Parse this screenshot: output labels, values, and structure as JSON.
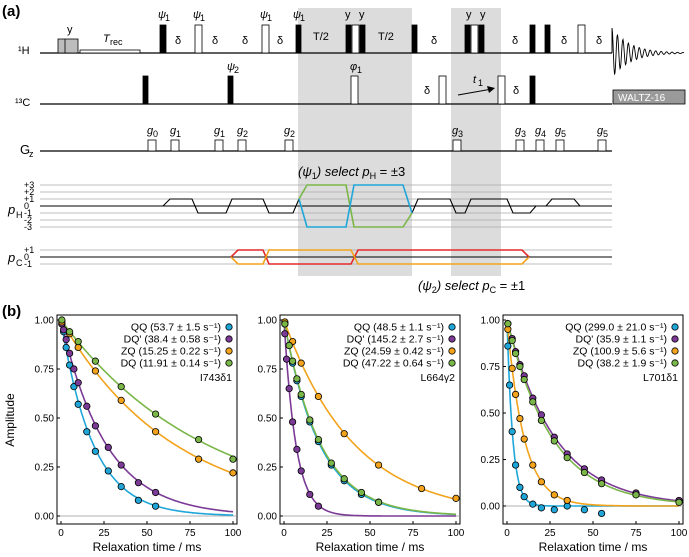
{
  "panel_a": {
    "label": "(a)",
    "channels": {
      "h": "¹H",
      "c": "¹³C",
      "g": "G",
      "g_sub": "z",
      "ph": "p",
      "ph_sub": "H",
      "pc": "p",
      "pc_sub": "C"
    },
    "labels": {
      "y": "y",
      "trec": "T",
      "trec_sub": "rec",
      "psi1": "ψ",
      "psi1_sub": "1",
      "psi2": "ψ",
      "psi2_sub": "2",
      "phi1": "φ",
      "phi1_sub": "1",
      "delta": "δ",
      "t2": "T/2",
      "t1": "t",
      "t1_sub": "1",
      "waltz": "WALTZ-16",
      "g0": "g",
      "g0_sub": "0",
      "g1": "g",
      "g1_sub": "1",
      "g2": "g",
      "g2_sub": "2",
      "g3": "g",
      "g3_sub": "3",
      "g4": "g",
      "g4_sub": "4",
      "g5": "g",
      "g5_sub": "5",
      "select_h_pre": "(ψ",
      "select_h_sub": "1",
      "select_h_mid": ") select p",
      "select_h_sub2": "H",
      "select_h_post": " = ±3",
      "select_c_pre": "(ψ",
      "select_c_sub": "2",
      "select_c_mid": ") select p",
      "select_c_sub2": "C",
      "select_c_post": " = ±1"
    },
    "ph_levels": [
      "+3",
      "+2",
      "+1",
      "0",
      "-1",
      "-2",
      "-3"
    ],
    "pc_levels": [
      "+1",
      "0",
      "-1"
    ],
    "colors": {
      "green": "#7ab648",
      "blue": "#1fa6d8",
      "red": "#e32b2b",
      "orange": "#f2a31b",
      "shade": "#dcdcdc"
    }
  },
  "panel_b": {
    "label": "(b)",
    "ylabel": "Amplitude",
    "xlabel": "Relaxation time / ms",
    "colors": {
      "QQ": "#1fa6d8",
      "DQ'": "#7b3a96",
      "ZQ": "#f2a31b",
      "DQ": "#7ab648"
    }
  },
  "chart_data": [
    {
      "type": "scatter",
      "annotation": "I743δ1",
      "xlabel": "Relaxation time / ms",
      "ylabel": "Amplitude",
      "xlim": [
        0,
        100
      ],
      "ylim": [
        0,
        1
      ],
      "xticks": [
        "0",
        "25",
        "50",
        "75",
        "100"
      ],
      "yticks": [
        "0.00",
        "0.25",
        "0.50",
        "0.75",
        "1.00"
      ],
      "legend_position": "top-right",
      "series": [
        {
          "name": "QQ (53.7 ± 1.5 s⁻¹)",
          "key": "QQ",
          "rate": 53.7,
          "x": [
            0.5,
            1.5,
            3,
            5,
            7.5,
            10,
            15,
            20,
            27.5,
            35,
            45,
            55
          ],
          "y": [
            0.98,
            0.94,
            0.86,
            0.77,
            0.66,
            0.57,
            0.43,
            0.33,
            0.23,
            0.15,
            0.08,
            0.05
          ]
        },
        {
          "name": "DQ' (38.4 ± 0.58 s⁻¹)",
          "key": "DQ'",
          "rate": 38.4,
          "x": [
            0.5,
            1.5,
            3,
            5,
            7.5,
            10,
            15,
            20,
            27.5,
            35,
            45,
            55
          ],
          "y": [
            0.98,
            0.95,
            0.9,
            0.83,
            0.75,
            0.68,
            0.56,
            0.46,
            0.35,
            0.26,
            0.17,
            0.12
          ]
        },
        {
          "name": "ZQ (15.25 ± 0.22 s⁻¹)",
          "key": "ZQ",
          "rate": 15.25,
          "x": [
            0.5,
            5,
            10,
            20,
            35,
            55,
            80,
            100
          ],
          "y": [
            0.99,
            0.93,
            0.86,
            0.74,
            0.59,
            0.43,
            0.29,
            0.22
          ]
        },
        {
          "name": "DQ (11.91 ± 0.14 s⁻¹)",
          "key": "DQ",
          "rate": 11.91,
          "x": [
            0.5,
            5,
            10,
            20,
            35,
            55,
            80,
            100
          ],
          "y": [
            1.0,
            0.94,
            0.89,
            0.79,
            0.66,
            0.52,
            0.39,
            0.29
          ]
        }
      ]
    },
    {
      "type": "scatter",
      "annotation": "L664γ2",
      "xlabel": "Relaxation time / ms",
      "ylabel": "",
      "xlim": [
        0,
        100
      ],
      "ylim": [
        0,
        1
      ],
      "xticks": [
        "0",
        "25",
        "50",
        "75",
        "100"
      ],
      "yticks": [
        "0.00",
        "0.25",
        "0.50",
        "0.75",
        "1.00"
      ],
      "legend_position": "top-right",
      "series": [
        {
          "name": "QQ (48.5 ± 1.1 s⁻¹)",
          "key": "QQ",
          "rate": 48.5,
          "x": [
            0.5,
            3,
            5,
            7.5,
            10,
            15,
            20,
            27.5,
            35,
            45,
            55
          ],
          "y": [
            0.98,
            0.87,
            0.78,
            0.69,
            0.61,
            0.48,
            0.38,
            0.26,
            0.18,
            0.11,
            0.07
          ]
        },
        {
          "name": "DQ' (145.2 ± 2.7 s⁻¹)",
          "key": "DQ'",
          "rate": 145.2,
          "x": [
            0.5,
            1.5,
            3,
            5,
            7.5,
            10,
            15,
            20
          ],
          "y": [
            0.93,
            0.8,
            0.65,
            0.48,
            0.34,
            0.23,
            0.11,
            0.05
          ]
        },
        {
          "name": "ZQ (24.59 ± 0.42 s⁻¹)",
          "key": "ZQ",
          "rate": 24.59,
          "x": [
            0.5,
            5,
            10,
            20,
            35,
            55,
            80,
            100
          ],
          "y": [
            0.99,
            0.89,
            0.78,
            0.61,
            0.42,
            0.26,
            0.14,
            0.09
          ]
        },
        {
          "name": "DQ (47.22 ± 0.64 s⁻¹)",
          "key": "DQ",
          "rate": 47.22,
          "x": [
            0.5,
            3,
            5,
            7.5,
            10,
            15,
            20,
            27.5,
            35,
            45,
            55
          ],
          "y": [
            0.98,
            0.87,
            0.79,
            0.7,
            0.62,
            0.49,
            0.39,
            0.27,
            0.19,
            0.12,
            0.07
          ]
        }
      ]
    },
    {
      "type": "scatter",
      "annotation": "L701δ1",
      "xlabel": "Relaxation time / ms",
      "ylabel": "",
      "xlim": [
        0,
        100
      ],
      "ylim": [
        -0.05,
        1
      ],
      "xticks": [
        "0",
        "25",
        "50",
        "75",
        "100"
      ],
      "yticks": [
        "0.00",
        "0.25",
        "0.50",
        "0.75",
        "1.00"
      ],
      "legend_position": "top-right",
      "series": [
        {
          "name": "QQ (299.0 ± 21.0 s⁻¹)",
          "key": "QQ",
          "rate": 299.0,
          "x": [
            0.5,
            1.5,
            3,
            5,
            7.5,
            10,
            15,
            20,
            27.5,
            35,
            45,
            55
          ],
          "y": [
            0.86,
            0.65,
            0.4,
            0.22,
            0.1,
            0.05,
            0.01,
            -0.01,
            -0.02,
            0.0,
            -0.02,
            -0.04
          ]
        },
        {
          "name": "DQ' (35.9 ± 1.1 s⁻¹)",
          "key": "DQ'",
          "rate": 35.9,
          "x": [
            0.5,
            3,
            5,
            7.5,
            10,
            15,
            20,
            27.5,
            35,
            45,
            55,
            75,
            100
          ],
          "y": [
            0.98,
            0.9,
            0.83,
            0.76,
            0.7,
            0.58,
            0.49,
            0.37,
            0.28,
            0.2,
            0.14,
            0.07,
            0.03
          ]
        },
        {
          "name": "ZQ (100.9 ± 5.6 s⁻¹)",
          "key": "ZQ",
          "rate": 100.9,
          "x": [
            0.5,
            3,
            5,
            7.5,
            10,
            15,
            20,
            27.5,
            35
          ],
          "y": [
            0.95,
            0.74,
            0.6,
            0.47,
            0.36,
            0.22,
            0.13,
            0.06,
            0.03
          ]
        },
        {
          "name": "DQ (38.2 ± 1.9 s⁻¹)",
          "key": "DQ",
          "rate": 38.2,
          "x": [
            0.5,
            3,
            5,
            7.5,
            10,
            15,
            20,
            27.5,
            35,
            45,
            55,
            75,
            100
          ],
          "y": [
            0.98,
            0.89,
            0.82,
            0.75,
            0.68,
            0.56,
            0.46,
            0.35,
            0.26,
            0.18,
            0.12,
            0.06,
            0.02
          ]
        }
      ]
    }
  ]
}
